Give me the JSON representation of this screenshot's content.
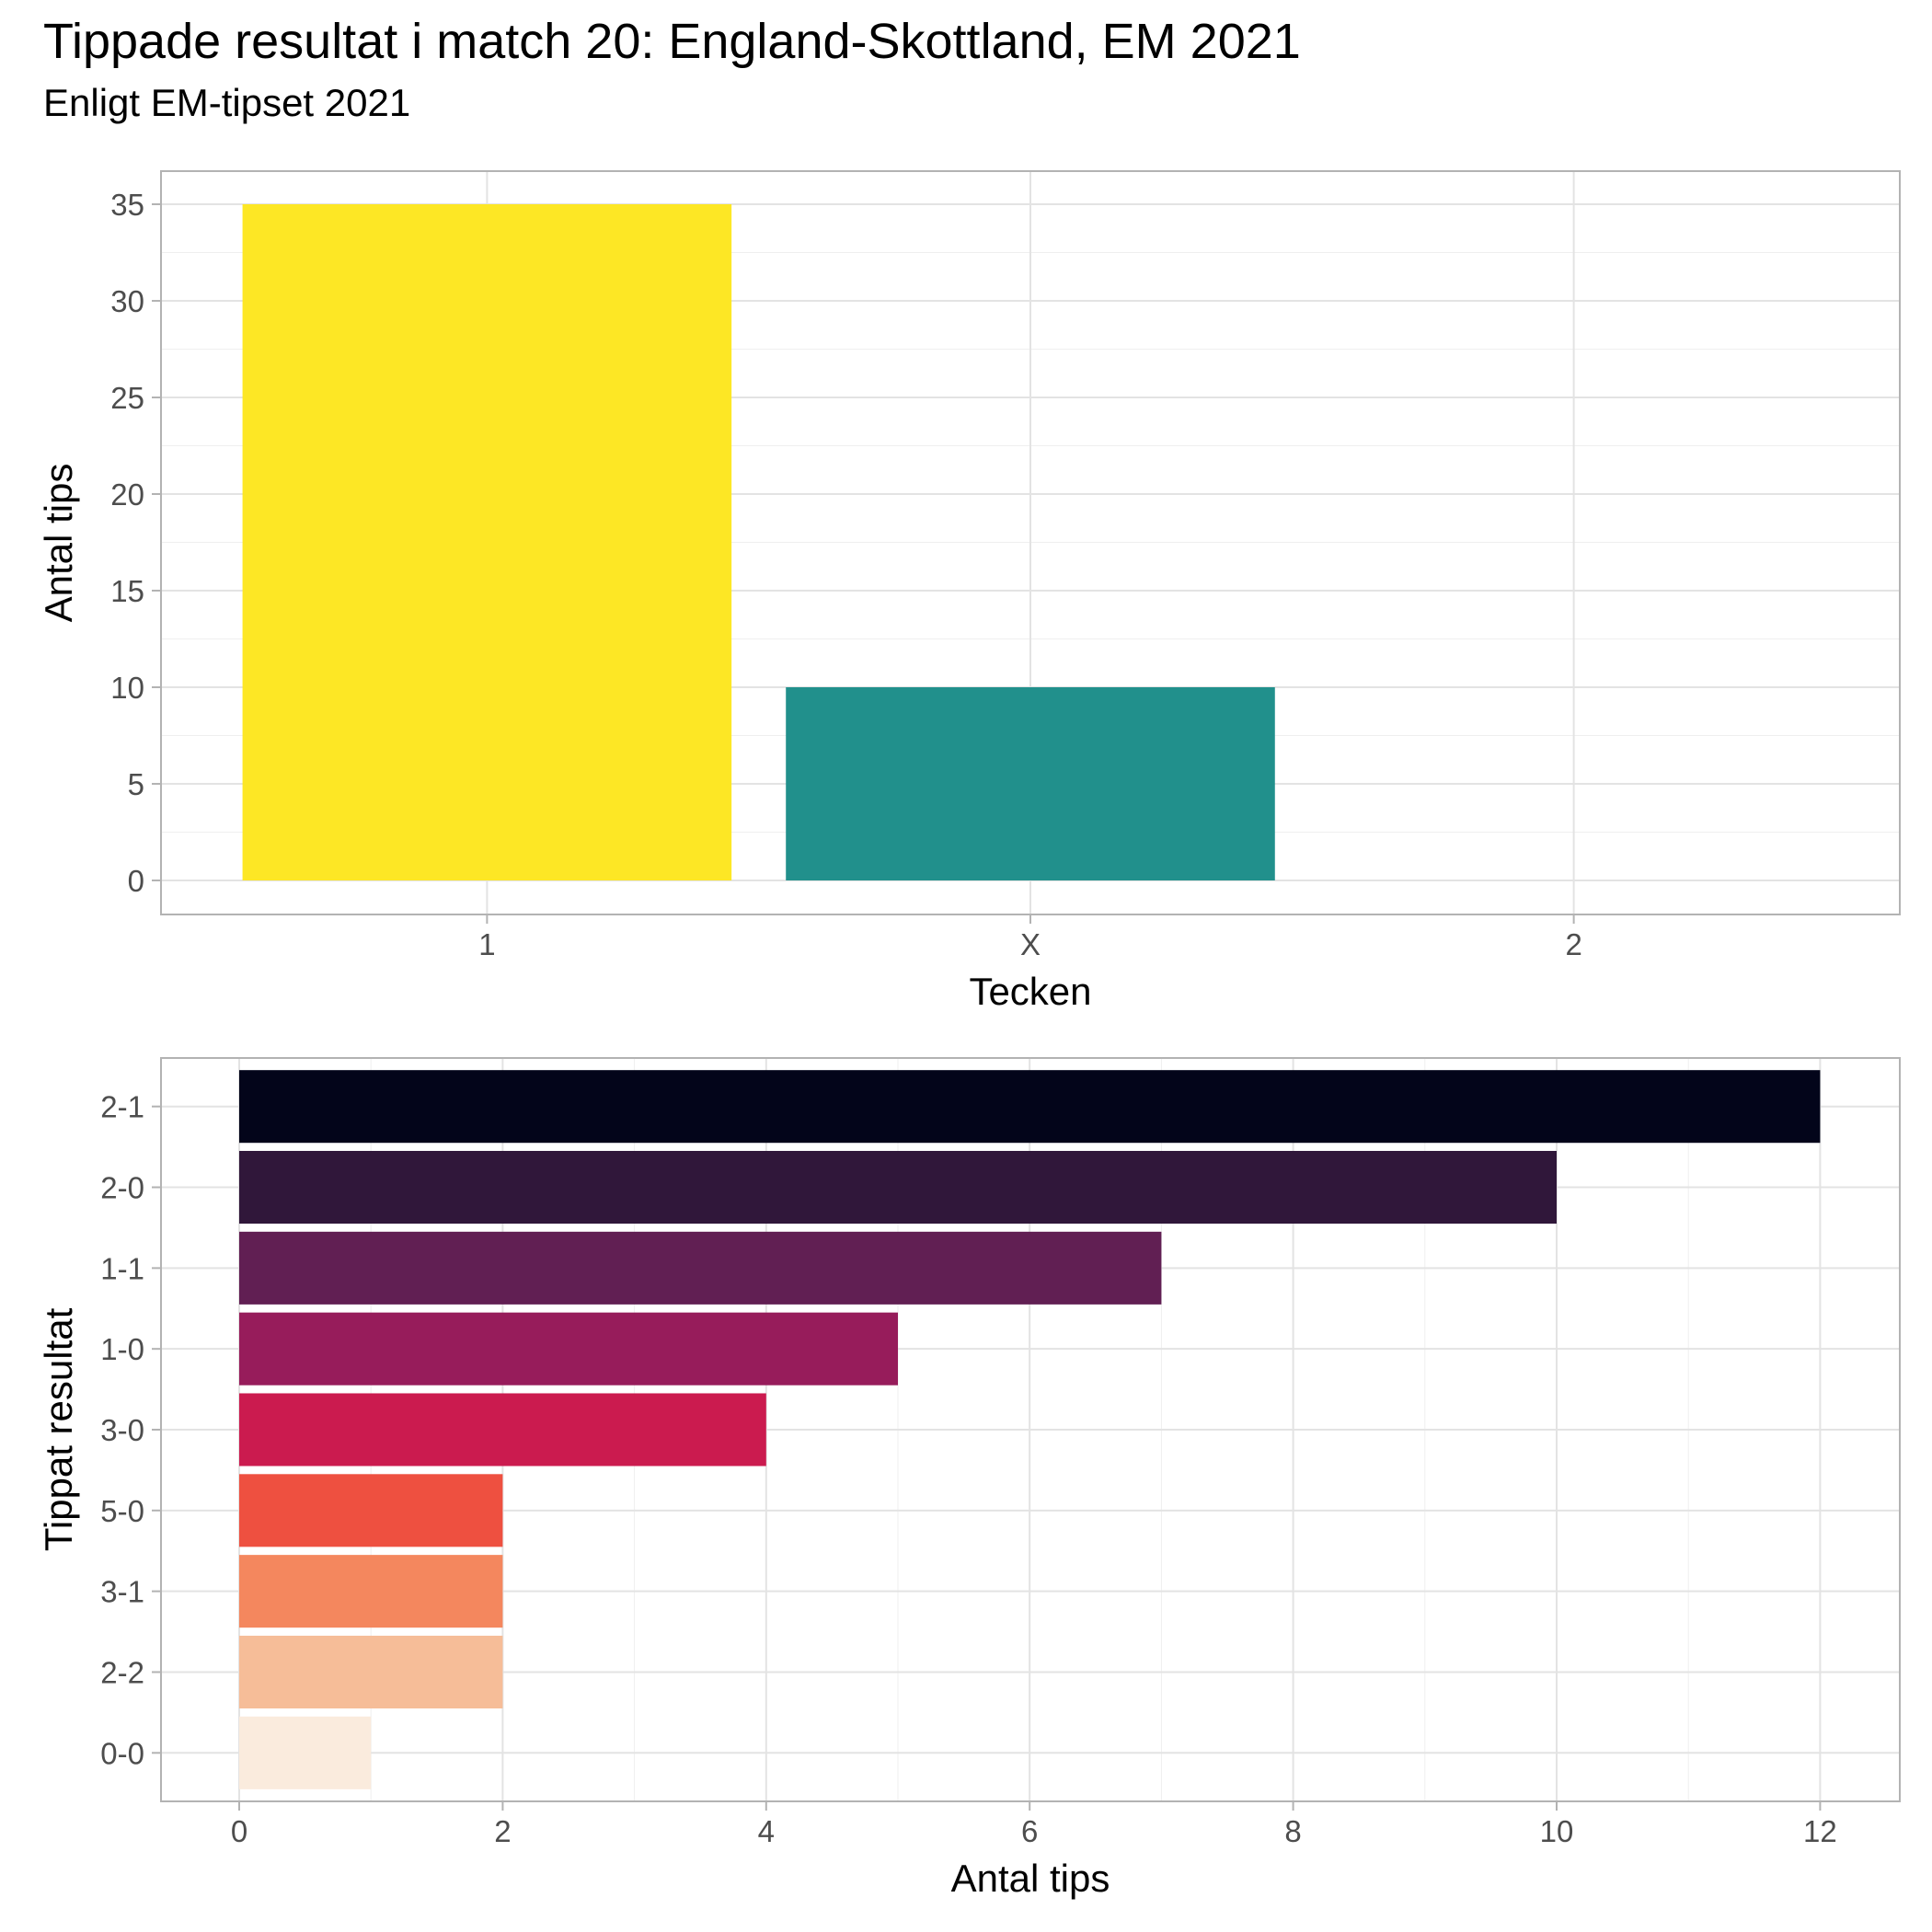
{
  "header": {
    "title": "Tippade resultat i match 20: England-Skottland, EM 2021",
    "subtitle": "Enligt EM-tipset 2021"
  },
  "chart_data": [
    {
      "type": "bar",
      "orientation": "vertical",
      "categories": [
        "1",
        "X",
        "2"
      ],
      "values": [
        35,
        10,
        0
      ],
      "colors": [
        "#FDE725",
        "#21908C",
        "#440154"
      ],
      "xlabel": "Tecken",
      "ylabel": "Antal tips",
      "ylim": [
        0,
        36.75
      ],
      "yticks": [
        0,
        5,
        10,
        15,
        20,
        25,
        30,
        35
      ],
      "grid": true,
      "legend": "none"
    },
    {
      "type": "bar",
      "orientation": "horizontal",
      "categories": [
        "2-1",
        "2-0",
        "1-1",
        "1-0",
        "3-0",
        "5-0",
        "3-1",
        "2-2",
        "0-0"
      ],
      "values": [
        12,
        10,
        7,
        5,
        4,
        2,
        2,
        2,
        1
      ],
      "colors": [
        "#03051A",
        "#30173A",
        "#611F53",
        "#971C5B",
        "#CB1B4F",
        "#EE5040",
        "#F4875E",
        "#F6BD98",
        "#FAEBDD"
      ],
      "xlabel": "Antal tips",
      "ylabel": "Tippat resultat",
      "xlim": [
        -0.6,
        12.6
      ],
      "xticks": [
        0,
        2,
        4,
        6,
        8,
        10,
        12
      ],
      "grid": true,
      "legend": "none"
    }
  ]
}
